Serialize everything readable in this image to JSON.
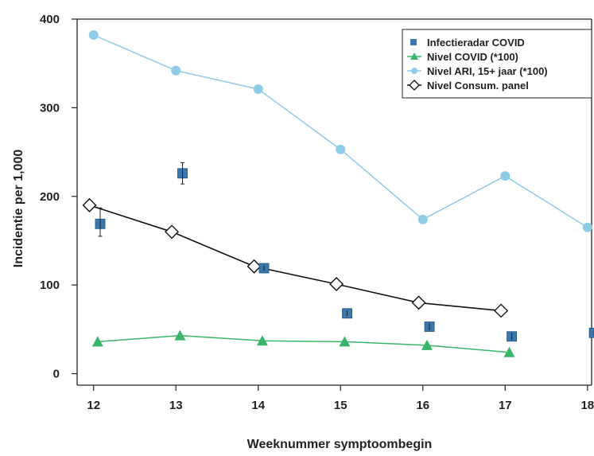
{
  "chart_data": {
    "type": "line",
    "title": "",
    "xlabel": "Weeknummer symptoombegin",
    "ylabel": "Incidentie per 1,000",
    "xlim": [
      11.8,
      18.05
    ],
    "ylim": [
      -13,
      400
    ],
    "xticks": [
      "12",
      "13",
      "14",
      "15",
      "16",
      "17",
      "18"
    ],
    "yticks": [
      "0",
      "100",
      "200",
      "300",
      "400"
    ],
    "legend_position": "top-right",
    "series": [
      {
        "name": "Infectieradar COVID",
        "color": "#3b78b0",
        "marker": "square",
        "line": false,
        "x": [
          12.08,
          13.08,
          14.07,
          15.08,
          16.08,
          17.08,
          18.08
        ],
        "y": [
          169,
          226,
          119,
          68,
          53,
          42,
          46
        ],
        "err_low": [
          155,
          214,
          116,
          65,
          49,
          38,
          43
        ],
        "err_high": [
          187,
          238,
          122,
          71,
          57,
          46,
          49
        ]
      },
      {
        "name": "Nivel COVID (*100)",
        "color": "#39b56a",
        "marker": "triangle",
        "line": true,
        "x": [
          12.05,
          13.05,
          14.05,
          15.05,
          16.05,
          17.05
        ],
        "y": [
          36,
          43,
          37,
          36,
          32,
          24
        ]
      },
      {
        "name": "Nivel ARI, 15+ jaar (*100)",
        "color": "#8ecbe6",
        "marker": "circle",
        "line": true,
        "x": [
          12,
          13,
          14,
          15,
          16,
          17,
          18
        ],
        "y": [
          382,
          342,
          321,
          253,
          174,
          223,
          165
        ]
      },
      {
        "name": "Nivel Consum. panel",
        "color": "#111111",
        "marker": "diamond",
        "line": true,
        "x": [
          11.95,
          12.95,
          13.95,
          14.95,
          15.95,
          16.95
        ],
        "y": [
          190,
          160,
          121,
          101,
          80,
          71
        ]
      }
    ]
  }
}
